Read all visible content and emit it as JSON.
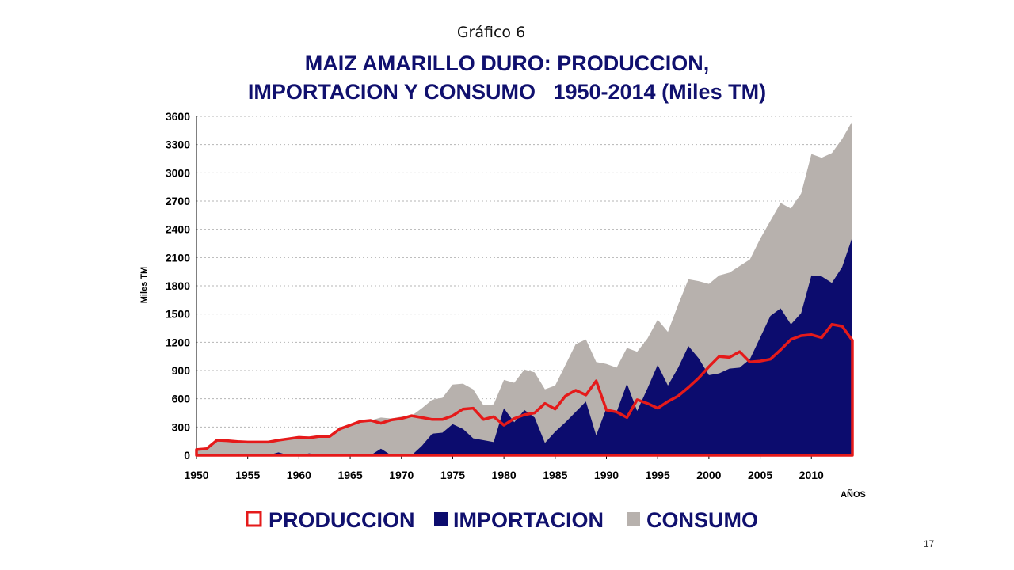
{
  "slide_label": "Gráfico 6",
  "page_number": "17",
  "colors": {
    "produccion": "#e51a1a",
    "importacion": "#0c0c6e",
    "consumo": "#b7b1ad",
    "title": "#10106e"
  },
  "chart_data": {
    "type": "area",
    "title_line1": "MAIZ AMARILLO DURO: PRODUCCION,",
    "title_line2": "IMPORTACION Y CONSUMO   1950-2014 (Miles TM)",
    "xlabel": "AÑOS",
    "ylabel": "Miles TM",
    "ylim": [
      0,
      3600
    ],
    "yticks": [
      0,
      300,
      600,
      900,
      1200,
      1500,
      1800,
      2100,
      2400,
      2700,
      3000,
      3300,
      3600
    ],
    "xticks": [
      1950,
      1955,
      1960,
      1965,
      1970,
      1975,
      1980,
      1985,
      1990,
      1995,
      2000,
      2005,
      2010
    ],
    "grid": true,
    "legend_position": "bottom",
    "x": [
      1950,
      1951,
      1952,
      1953,
      1954,
      1955,
      1956,
      1957,
      1958,
      1959,
      1960,
      1961,
      1962,
      1963,
      1964,
      1965,
      1966,
      1967,
      1968,
      1969,
      1970,
      1971,
      1972,
      1973,
      1974,
      1975,
      1976,
      1977,
      1978,
      1979,
      1980,
      1981,
      1982,
      1983,
      1984,
      1985,
      1986,
      1987,
      1988,
      1989,
      1990,
      1991,
      1992,
      1993,
      1994,
      1995,
      1996,
      1997,
      1998,
      1999,
      2000,
      2001,
      2002,
      2003,
      2004,
      2005,
      2006,
      2007,
      2008,
      2009,
      2010,
      2011,
      2012,
      2013,
      2014
    ],
    "series": [
      {
        "name": "CONSUMO",
        "values": [
          60,
          70,
          160,
          155,
          145,
          140,
          140,
          140,
          160,
          175,
          190,
          185,
          200,
          200,
          280,
          320,
          360,
          370,
          400,
          390,
          410,
          420,
          500,
          590,
          610,
          750,
          760,
          700,
          530,
          540,
          800,
          770,
          910,
          880,
          700,
          740,
          960,
          1180,
          1230,
          990,
          970,
          930,
          1140,
          1100,
          1240,
          1440,
          1310,
          1600,
          1870,
          1850,
          1820,
          1910,
          1940,
          2010,
          2080,
          2300,
          2490,
          2680,
          2620,
          2780,
          3200,
          3160,
          3210,
          3360,
          3550
        ]
      },
      {
        "name": "IMPORTACION",
        "values": [
          0,
          0,
          0,
          0,
          0,
          0,
          0,
          0,
          30,
          0,
          0,
          20,
          0,
          0,
          0,
          0,
          0,
          0,
          70,
          0,
          0,
          0,
          100,
          230,
          240,
          330,
          280,
          180,
          160,
          140,
          500,
          350,
          480,
          400,
          130,
          250,
          350,
          460,
          570,
          210,
          500,
          460,
          760,
          470,
          710,
          960,
          740,
          930,
          1160,
          1030,
          850,
          870,
          920,
          930,
          1020,
          1250,
          1480,
          1560,
          1390,
          1510,
          1910,
          1900,
          1830,
          2000,
          2320
        ]
      },
      {
        "name": "PRODUCCION",
        "values": [
          60,
          70,
          160,
          155,
          145,
          140,
          140,
          140,
          160,
          175,
          190,
          185,
          200,
          200,
          280,
          320,
          360,
          370,
          340,
          375,
          390,
          420,
          400,
          380,
          380,
          420,
          490,
          500,
          380,
          410,
          320,
          390,
          430,
          450,
          550,
          490,
          630,
          690,
          640,
          790,
          480,
          460,
          400,
          590,
          550,
          500,
          570,
          630,
          720,
          820,
          940,
          1050,
          1040,
          1100,
          990,
          1000,
          1020,
          1120,
          1230,
          1270,
          1280,
          1250,
          1390,
          1370,
          1220
        ]
      }
    ]
  }
}
